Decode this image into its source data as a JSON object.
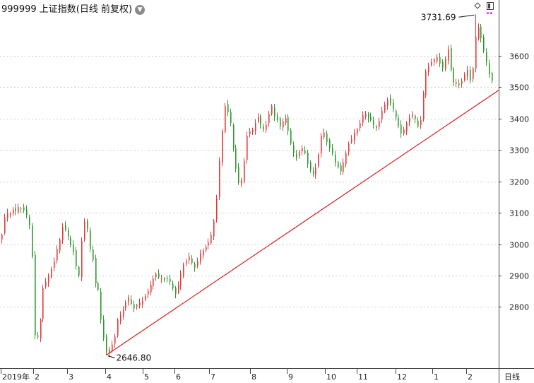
{
  "header": {
    "title": "999999 上证指数(日线 前复权)",
    "dropdown_icon": "chevron-down-icon"
  },
  "period_label": "日线",
  "colors": {
    "up": "#e23b3b",
    "down": "#2e9a2e",
    "trend": "#d42020",
    "grid": "#cccccc"
  },
  "chart_data": {
    "type": "candlestick",
    "title": "999999 上证指数(日线 前复权)",
    "ylim": [
      2610,
      3740
    ],
    "y_ticks": [
      2800,
      2900,
      3000,
      3100,
      3200,
      3300,
      3400,
      3500,
      3600
    ],
    "x_ticks": [
      "2019年",
      "2",
      "3",
      "4",
      "5",
      "6",
      "7",
      "8",
      "9",
      "10",
      "11",
      "12",
      "1",
      "2"
    ],
    "annotations": [
      {
        "text": "3731.69",
        "value": 3731.69,
        "label": "high"
      },
      {
        "text": "2646.80",
        "value": 2646.8,
        "label": "low"
      }
    ],
    "trendline": {
      "from": 2646.8,
      "to": 3490
    },
    "series_close": [
      3030,
      3085,
      3100,
      3095,
      3110,
      3105,
      3118,
      3112,
      3108,
      3092,
      3060,
      2960,
      2710,
      2705,
      2760,
      2860,
      2880,
      2900,
      2920,
      2945,
      2985,
      3015,
      3055,
      3045,
      3025,
      2998,
      2975,
      2930,
      2900,
      3010,
      3070,
      3050,
      2985,
      2950,
      2875,
      2855,
      2760,
      2700,
      2655,
      2665,
      2680,
      2705,
      2760,
      2775,
      2790,
      2815,
      2830,
      2810,
      2795,
      2805,
      2815,
      2820,
      2835,
      2850,
      2870,
      2890,
      2905,
      2895,
      2890,
      2885,
      2890,
      2880,
      2860,
      2840,
      2870,
      2905,
      2935,
      2945,
      2960,
      2940,
      2925,
      2945,
      2970,
      2980,
      2990,
      3005,
      3030,
      3075,
      3145,
      3265,
      3360,
      3440,
      3420,
      3385,
      3305,
      3240,
      3195,
      3205,
      3265,
      3345,
      3360,
      3365,
      3385,
      3405,
      3380,
      3365,
      3380,
      3415,
      3440,
      3405,
      3395,
      3375,
      3390,
      3400,
      3360,
      3320,
      3290,
      3275,
      3295,
      3305,
      3290,
      3255,
      3235,
      3225,
      3245,
      3285,
      3345,
      3355,
      3325,
      3305,
      3290,
      3260,
      3245,
      3232,
      3260,
      3290,
      3320,
      3335,
      3355,
      3365,
      3385,
      3410,
      3415,
      3400,
      3395,
      3380,
      3370,
      3392,
      3425,
      3445,
      3460,
      3448,
      3430,
      3405,
      3375,
      3352,
      3365,
      3385,
      3402,
      3412,
      3398,
      3375,
      3395,
      3480,
      3550,
      3565,
      3580,
      3588,
      3595,
      3575,
      3560,
      3590,
      3620,
      3555,
      3515,
      3515,
      3505,
      3520,
      3540,
      3555,
      3520,
      3560,
      3660,
      3690,
      3655,
      3615,
      3580,
      3540,
      3520
    ]
  }
}
